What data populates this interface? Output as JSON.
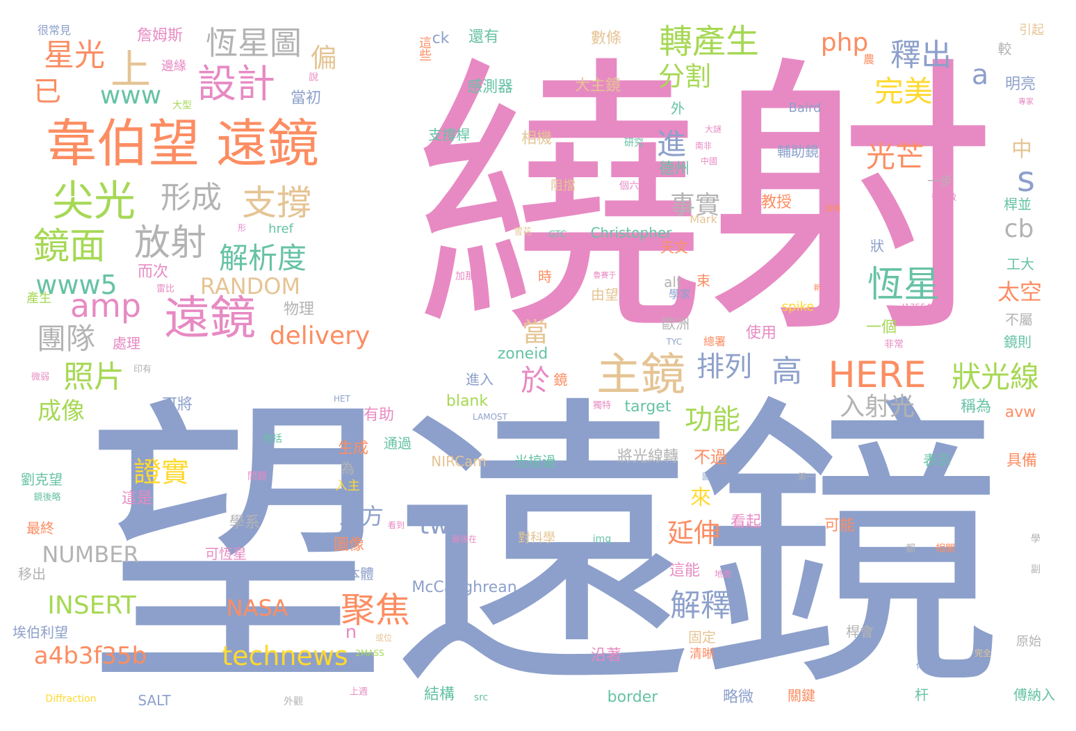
{
  "palette": {
    "pink": "#e78ac3",
    "blue": "#8da0cb",
    "orange": "#fc8d62",
    "green": "#66c2a5",
    "lime": "#a6d854",
    "yellow": "#ffd92f",
    "tan": "#e5c494",
    "gray": "#b3b3b3"
  },
  "words": [
    {
      "text": "繞射",
      "color": "pink"
    },
    {
      "text": "望遠鏡",
      "color": "blue"
    },
    {
      "text": "韋伯望 遠鏡",
      "color": "orange"
    },
    {
      "text": "遠鏡",
      "color": "pink"
    },
    {
      "text": "主鏡",
      "color": "tan"
    },
    {
      "text": "尖光",
      "color": "lime"
    },
    {
      "text": "恆星圖",
      "color": "gray"
    },
    {
      "text": "轉產生",
      "color": "lime"
    },
    {
      "text": "設計",
      "color": "pink"
    },
    {
      "text": "星光",
      "color": "orange"
    },
    {
      "text": "上",
      "color": "tan"
    },
    {
      "text": "鏡面",
      "color": "lime"
    },
    {
      "text": "放射",
      "color": "gray"
    },
    {
      "text": "支撐",
      "color": "tan"
    },
    {
      "text": "形成",
      "color": "gray"
    },
    {
      "text": "解析度",
      "color": "green"
    },
    {
      "text": "www",
      "color": "green"
    },
    {
      "text": "www5",
      "color": "green"
    },
    {
      "text": "amp",
      "color": "pink"
    },
    {
      "text": "團隊",
      "color": "gray"
    },
    {
      "text": "照片",
      "color": "lime"
    },
    {
      "text": "RANDOM",
      "color": "tan"
    },
    {
      "text": "delivery",
      "color": "orange"
    },
    {
      "text": "恆星",
      "color": "green"
    },
    {
      "text": "釋出",
      "color": "blue"
    },
    {
      "text": "分割",
      "color": "lime"
    },
    {
      "text": "完美",
      "color": "yellow"
    },
    {
      "text": "php",
      "color": "orange"
    },
    {
      "text": "a",
      "color": "blue"
    },
    {
      "text": "s",
      "color": "blue"
    },
    {
      "text": "cb",
      "color": "gray"
    },
    {
      "text": "進",
      "color": "blue"
    },
    {
      "text": "光芒",
      "color": "orange"
    },
    {
      "text": "事實",
      "color": "gray"
    },
    {
      "text": "HERE",
      "color": "orange"
    },
    {
      "text": "狀光線",
      "color": "lime"
    },
    {
      "text": "排列",
      "color": "blue"
    },
    {
      "text": "高",
      "color": "blue"
    },
    {
      "text": "於",
      "color": "pink"
    },
    {
      "text": "功能",
      "color": "lime"
    },
    {
      "text": "入射光",
      "color": "gray"
    },
    {
      "text": "聚焦",
      "color": "orange"
    },
    {
      "text": "解釋",
      "color": "blue"
    },
    {
      "text": "technews",
      "color": "yellow"
    },
    {
      "text": "a4b3f35b",
      "color": "orange"
    },
    {
      "text": "INSERT",
      "color": "lime"
    },
    {
      "text": "NUMBER",
      "color": "gray"
    },
    {
      "text": "證實",
      "color": "yellow"
    },
    {
      "text": "tw",
      "color": "blue"
    },
    {
      "text": "延伸",
      "color": "orange"
    },
    {
      "text": "NASA",
      "color": "orange"
    },
    {
      "text": "成像",
      "color": "lime"
    },
    {
      "text": "偏",
      "color": "tan"
    },
    {
      "text": "已",
      "color": "orange"
    },
    {
      "text": "當",
      "color": "tan"
    },
    {
      "text": "太空",
      "color": "orange"
    },
    {
      "text": "中",
      "color": "tan"
    },
    {
      "text": "上方",
      "color": "blue"
    },
    {
      "text": "來",
      "color": "yellow"
    },
    {
      "text": "n",
      "color": "pink"
    },
    {
      "text": "詹姆斯",
      "color": "pink"
    },
    {
      "text": "很常見",
      "color": "blue"
    },
    {
      "text": "邊緣",
      "color": "pink"
    },
    {
      "text": "大型",
      "color": "lime"
    },
    {
      "text": "說",
      "color": "pink"
    },
    {
      "text": "當初",
      "color": "blue"
    },
    {
      "text": "這些",
      "color": "orange"
    },
    {
      "text": "ck",
      "color": "blue"
    },
    {
      "text": "還有",
      "color": "green"
    },
    {
      "text": "數條",
      "color": "tan"
    },
    {
      "text": "感測器",
      "color": "green"
    },
    {
      "text": "大主鏡",
      "color": "tan"
    },
    {
      "text": "引起",
      "color": "tan"
    },
    {
      "text": "較",
      "color": "gray"
    },
    {
      "text": "明亮",
      "color": "blue"
    },
    {
      "text": "農",
      "color": "orange"
    },
    {
      "text": "專家",
      "color": "pink"
    },
    {
      "text": "Baird",
      "color": "blue"
    },
    {
      "text": "外",
      "color": "green"
    },
    {
      "text": "支撐桿",
      "color": "green"
    },
    {
      "text": "相機",
      "color": "tan"
    },
    {
      "text": "研究",
      "color": "green"
    },
    {
      "text": "大謎",
      "color": "pink"
    },
    {
      "text": "南非",
      "color": "pink"
    },
    {
      "text": "中國",
      "color": "pink"
    },
    {
      "text": "輔助鏡",
      "color": "blue"
    },
    {
      "text": "德州",
      "color": "green"
    },
    {
      "text": "阻擋",
      "color": "tan"
    },
    {
      "text": "個六邊",
      "color": "pink"
    },
    {
      "text": "一步",
      "color": "gray"
    },
    {
      "text": "郁守敬",
      "color": "pink"
    },
    {
      "text": "桿並",
      "color": "green"
    },
    {
      "text": "教授",
      "color": "orange"
    },
    {
      "text": "遙傳",
      "color": "orange"
    },
    {
      "text": "href",
      "color": "green"
    },
    {
      "text": "形",
      "color": "pink"
    },
    {
      "text": "Mark",
      "color": "tan"
    },
    {
      "text": "雪花",
      "color": "tan"
    },
    {
      "text": "GTC",
      "color": "green"
    },
    {
      "text": "Christopher",
      "color": "green"
    },
    {
      "text": "天文",
      "color": "orange"
    },
    {
      "text": "而次",
      "color": "pink"
    },
    {
      "text": "狀",
      "color": "blue"
    },
    {
      "text": "工大",
      "color": "green"
    },
    {
      "text": "雷比",
      "color": "pink"
    },
    {
      "text": "加那利",
      "color": "pink"
    },
    {
      "text": "時",
      "color": "orange"
    },
    {
      "text": "魯賽于",
      "color": "pink"
    },
    {
      "text": "alt",
      "color": "gray"
    },
    {
      "text": "束",
      "color": "orange"
    },
    {
      "text": "學家",
      "color": "blue"
    },
    {
      "text": "新",
      "color": "orange"
    },
    {
      "text": "J17554042",
      "color": "pink"
    },
    {
      "text": "產生",
      "color": "lime"
    },
    {
      "text": "由望",
      "color": "tan"
    },
    {
      "text": "spike",
      "color": "yellow"
    },
    {
      "text": "物理",
      "color": "gray"
    },
    {
      "text": "處理",
      "color": "pink"
    },
    {
      "text": "歐洲",
      "color": "gray"
    },
    {
      "text": "一個",
      "color": "lime"
    },
    {
      "text": "不屬",
      "color": "gray"
    },
    {
      "text": "鏡則",
      "color": "green"
    },
    {
      "text": "使用",
      "color": "pink"
    },
    {
      "text": "總署",
      "color": "orange"
    },
    {
      "text": "非常",
      "color": "pink"
    },
    {
      "text": "TYC",
      "color": "blue"
    },
    {
      "text": "zoneid",
      "color": "green"
    },
    {
      "text": "微弱",
      "color": "pink"
    },
    {
      "text": "印有",
      "color": "gray"
    },
    {
      "text": "進入",
      "color": "blue"
    },
    {
      "text": "鏡",
      "color": "orange"
    },
    {
      "text": "blank",
      "color": "lime"
    },
    {
      "text": "target",
      "color": "green"
    },
    {
      "text": "稱為",
      "color": "green"
    },
    {
      "text": "avw",
      "color": "orange"
    },
    {
      "text": "可將",
      "color": "blue"
    },
    {
      "text": "HET",
      "color": "blue"
    },
    {
      "text": "LAMOST",
      "color": "blue"
    },
    {
      "text": "獨特",
      "color": "pink"
    },
    {
      "text": "有助",
      "color": "pink"
    },
    {
      "text": "包括",
      "color": "green"
    },
    {
      "text": "生成",
      "color": "orange"
    },
    {
      "text": "通過",
      "color": "green"
    },
    {
      "text": "將光線轉",
      "color": "gray"
    },
    {
      "text": "NIRCam",
      "color": "tan"
    },
    {
      "text": "光掠過",
      "color": "green"
    },
    {
      "text": "表示",
      "color": "green"
    },
    {
      "text": "具備",
      "color": "orange"
    },
    {
      "text": "不過",
      "color": "orange"
    },
    {
      "text": "劉克望",
      "color": "green"
    },
    {
      "text": "問題",
      "color": "pink"
    },
    {
      "text": "圖案",
      "color": "blue"
    },
    {
      "text": "第一",
      "color": "gray"
    },
    {
      "text": "鏡後略",
      "color": "green"
    },
    {
      "text": "這是",
      "color": "pink"
    },
    {
      "text": "為",
      "color": "gray"
    },
    {
      "text": "入主",
      "color": "yellow"
    },
    {
      "text": "學系",
      "color": "gray"
    },
    {
      "text": "可能",
      "color": "orange"
    },
    {
      "text": "最終",
      "color": "orange"
    },
    {
      "text": "看起",
      "color": "pink"
    },
    {
      "text": "看到",
      "color": "pink"
    },
    {
      "text": "最後在",
      "color": "pink"
    },
    {
      "text": "對科學",
      "color": "tan"
    },
    {
      "text": "img",
      "color": "green"
    },
    {
      "text": "圖像",
      "color": "orange"
    },
    {
      "text": "可恆星",
      "color": "pink"
    },
    {
      "text": "都",
      "color": "gray"
    },
    {
      "text": "相關",
      "color": "orange"
    },
    {
      "text": "學",
      "color": "gray"
    },
    {
      "text": "移出",
      "color": "gray"
    },
    {
      "text": "本體",
      "color": "blue"
    },
    {
      "text": "這能",
      "color": "pink"
    },
    {
      "text": "地面",
      "color": "pink"
    },
    {
      "text": "副",
      "color": "gray"
    },
    {
      "text": "McCaughrean",
      "color": "blue"
    },
    {
      "text": "助理",
      "color": "blue"
    },
    {
      "text": "埃伯利望",
      "color": "blue"
    },
    {
      "text": "或位",
      "color": "tan"
    },
    {
      "text": "固定",
      "color": "tan"
    },
    {
      "text": "桿會",
      "color": "gray"
    },
    {
      "text": "原始",
      "color": "gray"
    },
    {
      "text": "沿著",
      "color": "pink"
    },
    {
      "text": "清晰",
      "color": "orange"
    },
    {
      "text": "完全",
      "color": "tan"
    },
    {
      "text": "傳",
      "color": "blue"
    },
    {
      "text": "2MASS",
      "color": "lime"
    },
    {
      "text": "Diffraction",
      "color": "yellow"
    },
    {
      "text": "SALT",
      "color": "blue"
    },
    {
      "text": "外觀",
      "color": "gray"
    },
    {
      "text": "上週",
      "color": "pink"
    },
    {
      "text": "結構",
      "color": "green"
    },
    {
      "text": "src",
      "color": "green"
    },
    {
      "text": "border",
      "color": "green"
    },
    {
      "text": "略微",
      "color": "blue"
    },
    {
      "text": "關鍵",
      "color": "orange"
    },
    {
      "text": "杆",
      "color": "green"
    },
    {
      "text": "傅納入",
      "color": "green"
    }
  ]
}
